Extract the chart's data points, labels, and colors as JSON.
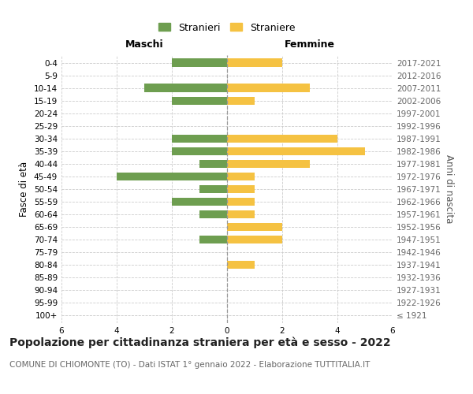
{
  "age_groups": [
    "100+",
    "95-99",
    "90-94",
    "85-89",
    "80-84",
    "75-79",
    "70-74",
    "65-69",
    "60-64",
    "55-59",
    "50-54",
    "45-49",
    "40-44",
    "35-39",
    "30-34",
    "25-29",
    "20-24",
    "15-19",
    "10-14",
    "5-9",
    "0-4"
  ],
  "birth_years": [
    "≤ 1921",
    "1922-1926",
    "1927-1931",
    "1932-1936",
    "1937-1941",
    "1942-1946",
    "1947-1951",
    "1952-1956",
    "1957-1961",
    "1962-1966",
    "1967-1971",
    "1972-1976",
    "1977-1981",
    "1982-1986",
    "1987-1991",
    "1992-1996",
    "1997-2001",
    "2002-2006",
    "2007-2011",
    "2012-2016",
    "2017-2021"
  ],
  "maschi": [
    0,
    0,
    0,
    0,
    0,
    0,
    1,
    0,
    1,
    2,
    1,
    4,
    1,
    2,
    2,
    0,
    0,
    2,
    3,
    0,
    2
  ],
  "femmine": [
    0,
    0,
    0,
    0,
    1,
    0,
    2,
    2,
    1,
    1,
    1,
    1,
    3,
    5,
    4,
    0,
    0,
    1,
    3,
    0,
    2
  ],
  "color_maschi": "#6e9e50",
  "color_femmine": "#f5c242",
  "grid_color": "#cccccc",
  "title": "Popolazione per cittadinanza straniera per età e sesso - 2022",
  "subtitle": "COMUNE DI CHIOMONTE (TO) - Dati ISTAT 1° gennaio 2022 - Elaborazione TUTTITALIA.IT",
  "ylabel_left": "Fasce di età",
  "ylabel_right": "Anni di nascita",
  "xlabel_maschi": "Maschi",
  "xlabel_femmine": "Femmine",
  "legend_stranieri": "Stranieri",
  "legend_straniere": "Straniere",
  "xlim": 6,
  "title_fontsize": 10,
  "subtitle_fontsize": 7.5,
  "header_fontsize": 9,
  "tick_fontsize": 7.5,
  "ylabel_fontsize": 8.5,
  "legend_fontsize": 9
}
